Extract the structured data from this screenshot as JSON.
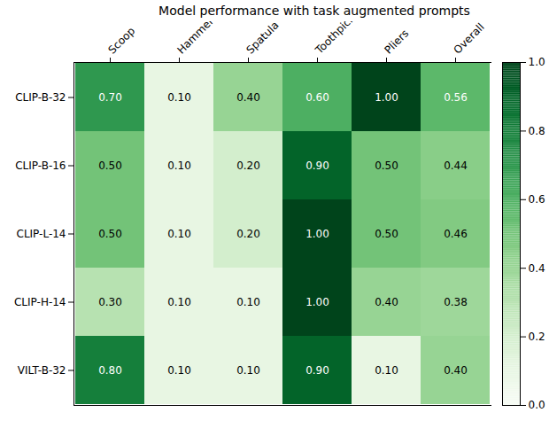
{
  "chart_data": {
    "type": "heatmap",
    "title": "Model performance with task augmented prompts",
    "x": [
      "Scoop",
      "Hammer",
      "Spatula",
      "Toothpick",
      "Pliers",
      "Overall"
    ],
    "y": [
      "CLIP-B-32",
      "CLIP-B-16",
      "CLIP-L-14",
      "CLIP-H-14",
      "VILT-B-32"
    ],
    "values": [
      [
        0.7,
        0.1,
        0.4,
        0.6,
        1.0,
        0.56
      ],
      [
        0.5,
        0.1,
        0.2,
        0.9,
        0.5,
        0.44
      ],
      [
        0.5,
        0.1,
        0.2,
        1.0,
        0.5,
        0.46
      ],
      [
        0.3,
        0.1,
        0.1,
        1.0,
        0.4,
        0.38
      ],
      [
        0.8,
        0.1,
        0.1,
        0.9,
        0.1,
        0.4
      ]
    ],
    "value_labels": [
      [
        "0.70",
        "0.10",
        "0.40",
        "0.60",
        "1.00",
        "0.56"
      ],
      [
        "0.50",
        "0.10",
        "0.20",
        "0.90",
        "0.50",
        "0.44"
      ],
      [
        "0.50",
        "0.10",
        "0.20",
        "1.00",
        "0.50",
        "0.46"
      ],
      [
        "0.30",
        "0.10",
        "0.10",
        "1.00",
        "0.40",
        "0.38"
      ],
      [
        "0.80",
        "0.10",
        "0.10",
        "0.90",
        "0.10",
        "0.40"
      ]
    ],
    "data_labels": true,
    "color": "Greens",
    "colorbar": {
      "range": [
        0,
        1
      ],
      "ticks": [
        {
          "value": 0,
          "label": "0.0"
        },
        {
          "value": 0.2,
          "label": "0.2"
        },
        {
          "value": 0.4,
          "label": "0.4"
        },
        {
          "value": 0.6,
          "label": "0.6"
        },
        {
          "value": 0.8,
          "label": "0.8"
        },
        {
          "value": 1,
          "label": "1.0"
        }
      ]
    }
  }
}
